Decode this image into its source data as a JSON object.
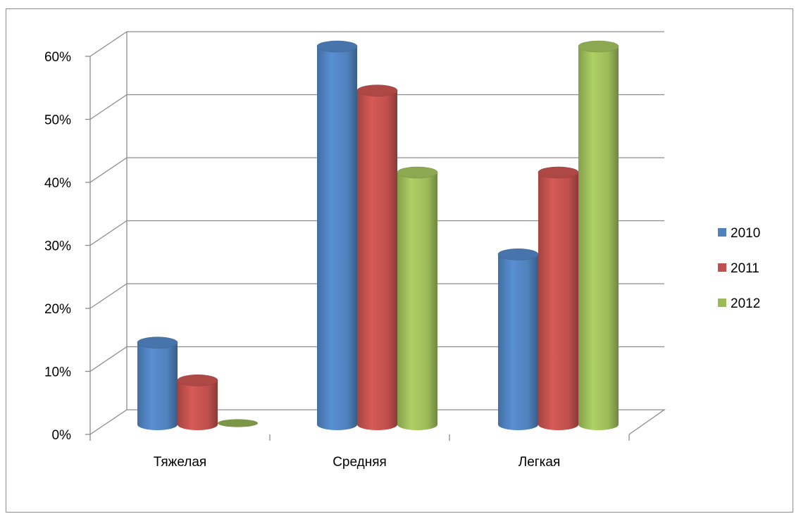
{
  "chart_data": {
    "type": "bar",
    "style": "3d-cylinder",
    "categories": [
      "Тяжелая",
      "Средняя",
      "Легкая"
    ],
    "series": [
      {
        "name": "2010",
        "color": "#4f81bd",
        "values": [
          13,
          60,
          27
        ]
      },
      {
        "name": "2011",
        "color": "#c0504d",
        "values": [
          7,
          53,
          40
        ]
      },
      {
        "name": "2012",
        "color": "#9bbb59",
        "values": [
          0,
          40,
          60
        ]
      }
    ],
    "yticks": [
      "0%",
      "10%",
      "20%",
      "30%",
      "40%",
      "50%",
      "60%"
    ],
    "ylim": [
      0,
      60
    ],
    "grid": true,
    "legend_position": "right"
  }
}
